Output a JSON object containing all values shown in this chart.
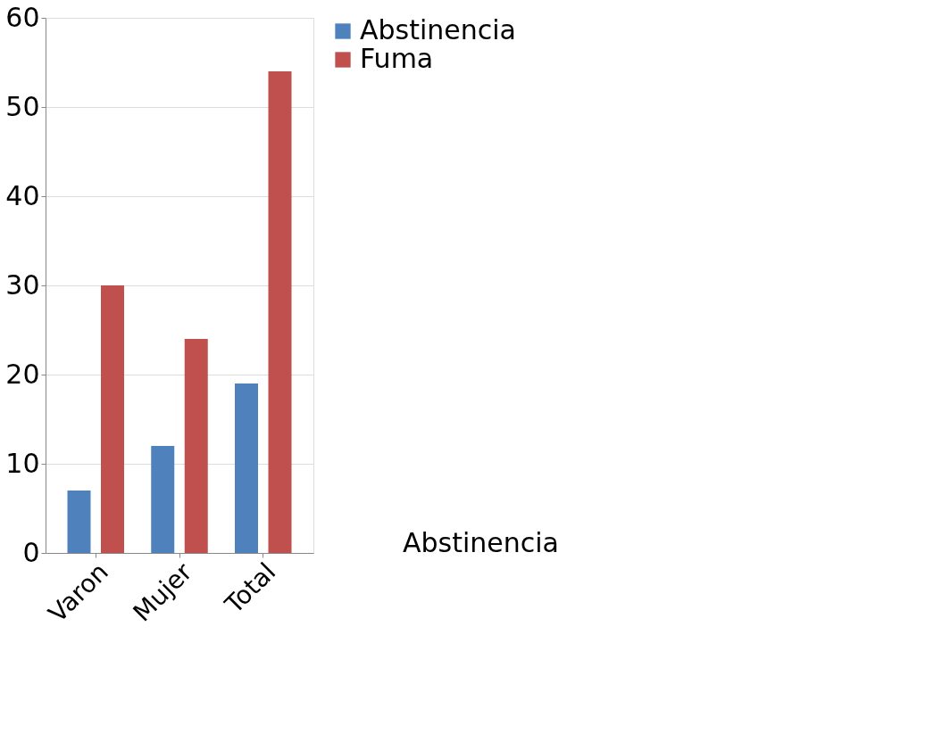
{
  "chart_data": {
    "type": "bar",
    "categories": [
      "Varon",
      "Mujer",
      "Total"
    ],
    "series": [
      {
        "name": "Abstinencia",
        "color": "#4f81bd",
        "values": [
          7,
          12,
          19
        ]
      },
      {
        "name": "Fuma",
        "color": "#c0504d",
        "values": [
          30,
          24,
          54
        ]
      }
    ],
    "ylim": [
      0,
      60
    ],
    "yticks": [
      0,
      10,
      20,
      30,
      40,
      50,
      60
    ],
    "grid": "y",
    "legend": "right",
    "annotations": [
      "Abstinencia"
    ]
  }
}
